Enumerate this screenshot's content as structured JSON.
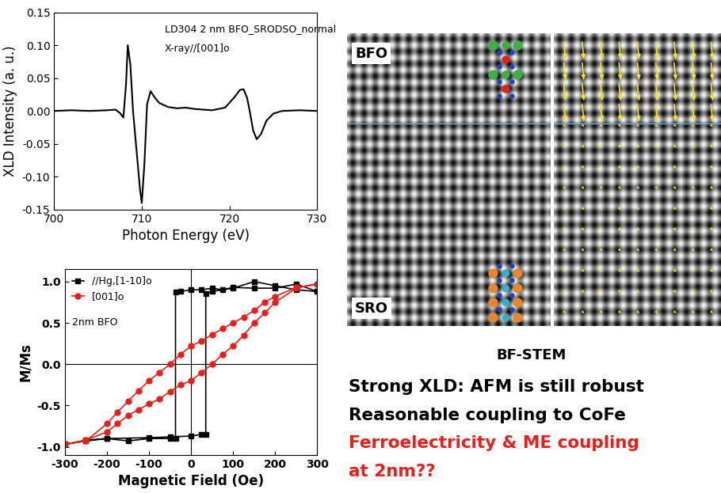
{
  "chart_data": [
    {
      "type": "line",
      "annotations": [
        "LD304 2 nm BFO_SRODSO_normal",
        "X-ray//[001]o"
      ],
      "x_label": "Photon Energy (eV)",
      "y_label": "XLD Intensity (a. u.)",
      "xlim": [
        700,
        730
      ],
      "xticks": [
        700,
        710,
        720,
        730
      ],
      "ylim": [
        -0.15,
        0.15
      ],
      "yticks": [
        -0.15,
        {
          "value": -0.1,
          "label": "-0.10"
        },
        -0.05,
        {
          "value": 0,
          "label": "0.00"
        },
        0.05,
        {
          "value": 0.1,
          "label": "0.10"
        },
        0.15
      ],
      "series": [
        {
          "color": "#000000",
          "x": [
            700,
            702,
            704,
            706,
            707,
            707.5,
            707.9,
            708.2,
            708.4,
            708.7,
            709.0,
            709.4,
            709.8,
            710.0,
            710.3,
            710.6,
            711.0,
            711.5,
            712,
            713,
            714,
            715,
            716,
            718,
            719.5,
            720.5,
            721.2,
            721.6,
            722.0,
            722.3,
            722.7,
            723.1,
            723.6,
            724.2,
            725,
            726,
            728,
            730
          ],
          "values": [
            0,
            0.001,
            0,
            0.001,
            0.002,
            -0.003,
            -0.01,
            0.04,
            0.1,
            0.07,
            0.0,
            -0.06,
            -0.12,
            -0.14,
            -0.08,
            0.01,
            0.03,
            0.02,
            0.012,
            0.006,
            0.004,
            0.005,
            0.003,
            0.001,
            0.005,
            0.02,
            0.032,
            0.033,
            0.02,
            0.0,
            -0.03,
            -0.043,
            -0.035,
            -0.015,
            -0.004,
            0,
            0.001,
            0
          ]
        }
      ]
    },
    {
      "type": "line",
      "annotations": [
        "2nm BFO"
      ],
      "x_label": "Magnetic Field (Oe)",
      "y_label": "M/Ms",
      "xlim": [
        -300,
        300
      ],
      "xticks": [
        -300,
        -200,
        -100,
        0,
        100,
        200,
        300
      ],
      "ylim": [
        -1.1,
        1.15
      ],
      "yticks": [
        -1.0,
        -0.5,
        0.0,
        0.5,
        1.0
      ],
      "legend": "upper left",
      "series": [
        {
          "name": "//Hg,[1-10]o",
          "color": "#000000",
          "marker": "square",
          "x": [
            300,
            250,
            200,
            150,
            100,
            75,
            50,
            25,
            0,
            -25,
            -37,
            -37,
            -50,
            -100,
            -150,
            -200,
            -250,
            -300,
            -250,
            -200,
            -100,
            -50,
            0,
            25,
            35,
            35,
            50,
            100,
            150,
            200,
            250,
            300
          ],
          "values": [
            0.88,
            0.97,
            0.92,
            0.92,
            0.93,
            0.9,
            0.92,
            0.9,
            0.9,
            0.88,
            0.87,
            -0.9,
            -0.9,
            -0.9,
            -0.93,
            -0.9,
            -0.92,
            -0.97,
            -0.93,
            -0.9,
            -0.89,
            -0.88,
            -0.87,
            -0.85,
            -0.85,
            0.85,
            0.88,
            0.92,
            1.0,
            0.95,
            0.9,
            0.88
          ]
        },
        {
          "name": "[001]o",
          "color": "#e8201c",
          "marker": "circle",
          "x": [
            300,
            250,
            200,
            175,
            150,
            125,
            100,
            75,
            50,
            25,
            0,
            -25,
            -50,
            -75,
            -100,
            -125,
            -150,
            -175,
            -200,
            -250,
            -300,
            -250,
            -200,
            -175,
            -150,
            -125,
            -100,
            -75,
            -50,
            -25,
            0,
            25,
            50,
            75,
            100,
            125,
            150,
            175,
            200,
            250,
            300
          ],
          "values": [
            0.97,
            0.93,
            0.82,
            0.75,
            0.65,
            0.57,
            0.5,
            0.43,
            0.36,
            0.28,
            0.22,
            0.12,
            0.0,
            -0.1,
            -0.2,
            -0.32,
            -0.45,
            -0.58,
            -0.72,
            -0.93,
            -0.97,
            -0.92,
            -0.82,
            -0.72,
            -0.62,
            -0.55,
            -0.48,
            -0.42,
            -0.33,
            -0.25,
            -0.2,
            -0.1,
            0.0,
            0.12,
            0.22,
            0.35,
            0.5,
            0.62,
            0.75,
            0.92,
            0.97
          ]
        }
      ]
    }
  ],
  "image": {
    "labels": [
      "BFO",
      "SRO"
    ],
    "caption": "BF-STEM"
  },
  "notes": [
    {
      "text": "Strong XLD: AFM is still robust",
      "color": "#000000"
    },
    {
      "text": "Reasonable coupling to CoFe",
      "color": "#000000"
    },
    {
      "text": "Ferroelectricity & ME coupling",
      "color": "#e8201c"
    },
    {
      "text": "at 2nm??",
      "color": "#e8201c"
    }
  ]
}
